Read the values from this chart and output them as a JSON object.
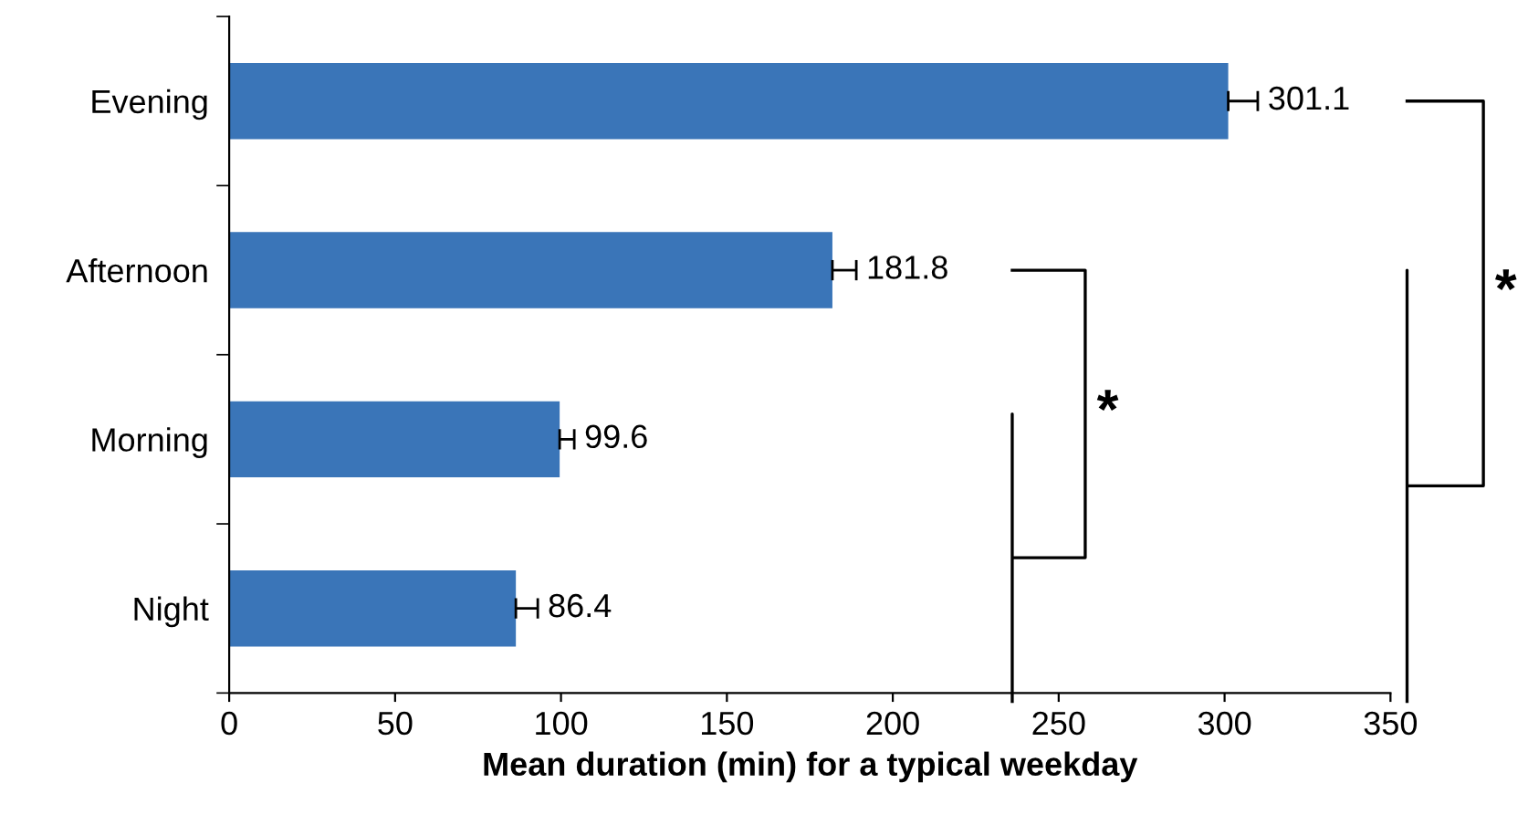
{
  "chart_data": {
    "type": "bar",
    "orientation": "horizontal",
    "xlabel": "Mean duration (min) for a typical weekday",
    "categories": [
      "Evening",
      "Afternoon",
      "Morning",
      "Night"
    ],
    "values": [
      301.1,
      181.8,
      99.6,
      86.4
    ],
    "errors": [
      [
        301.1,
        310
      ],
      [
        181.8,
        189
      ],
      [
        99.6,
        104
      ],
      [
        86.4,
        93
      ]
    ],
    "color": "#3a75b8",
    "data_labels": true,
    "grid": false,
    "xlim": [
      0,
      350
    ],
    "xticks": [
      0,
      50,
      100,
      150,
      200,
      250,
      300,
      350
    ],
    "annotations": [
      "*",
      "*"
    ]
  }
}
